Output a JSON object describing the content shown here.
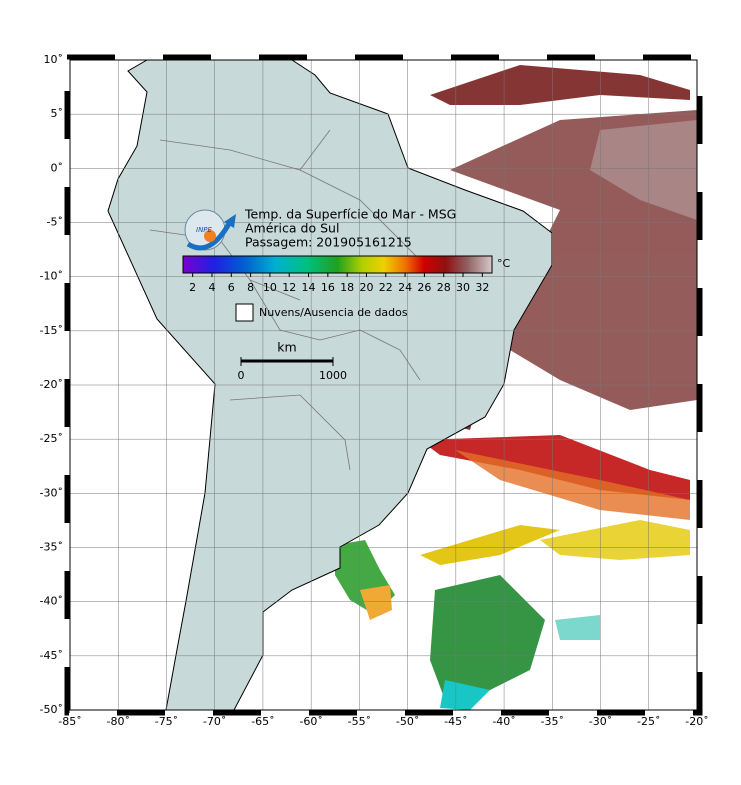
{
  "map": {
    "title": "Temp. da Superfície do Mar - MSG",
    "region": "América do Sul",
    "pass": "Passagem: 201905161215",
    "logo_text": "INPE",
    "xlim": [
      -85,
      -20
    ],
    "ylim": [
      -50,
      10
    ],
    "xticks": [
      {
        "value": -85,
        "label": "-85˚"
      },
      {
        "value": -80,
        "label": "-80˚"
      },
      {
        "value": -75,
        "label": "-75˚"
      },
      {
        "value": -70,
        "label": "-70˚"
      },
      {
        "value": -65,
        "label": "-65˚"
      },
      {
        "value": -60,
        "label": "-60˚"
      },
      {
        "value": -55,
        "label": "-55˚"
      },
      {
        "value": -50,
        "label": "-50˚"
      },
      {
        "value": -45,
        "label": "-45˚"
      },
      {
        "value": -40,
        "label": "-40˚"
      },
      {
        "value": -35,
        "label": "-35˚"
      },
      {
        "value": -30,
        "label": "-30˚"
      },
      {
        "value": -25,
        "label": "-25˚"
      },
      {
        "value": -20,
        "label": "-20˚"
      }
    ],
    "yticks": [
      {
        "value": 10,
        "label": "10˚"
      },
      {
        "value": 5,
        "label": "5˚"
      },
      {
        "value": 0,
        "label": "0˚"
      },
      {
        "value": -5,
        "label": "-5˚"
      },
      {
        "value": -10,
        "label": "-10˚"
      },
      {
        "value": -15,
        "label": "-15˚"
      },
      {
        "value": -20,
        "label": "-20˚"
      },
      {
        "value": -25,
        "label": "-25˚"
      },
      {
        "value": -30,
        "label": "-30˚"
      },
      {
        "value": -35,
        "label": "-35˚"
      },
      {
        "value": -40,
        "label": "-40˚"
      },
      {
        "value": -45,
        "label": "-45˚"
      },
      {
        "value": -50,
        "label": "-50˚"
      }
    ],
    "colorbar": {
      "unit": "°C",
      "clim": [
        1,
        33
      ],
      "ticks": [
        2,
        4,
        6,
        8,
        10,
        12,
        14,
        16,
        18,
        20,
        22,
        24,
        26,
        28,
        30,
        32
      ]
    },
    "legend": "Nuvens/Ausencia de dados",
    "scale_bar": {
      "unit": "km",
      "ticks": [
        0,
        1000
      ]
    }
  }
}
